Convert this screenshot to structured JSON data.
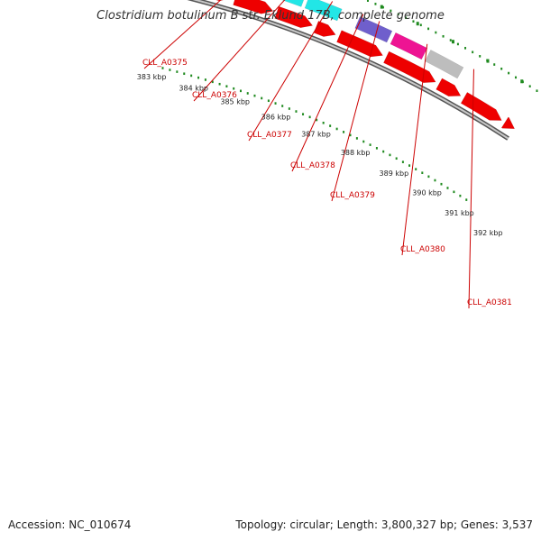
{
  "header": {
    "title": "Clostridium botulinum B str. Eklund 17B, complete genome"
  },
  "footer": {
    "accession": "Accession: NC_010674",
    "summary": "Topology: circular; Length: 3,800,327 bp; Genes: 3,537"
  },
  "colors": {
    "cds": "#ee0000",
    "backbone": "#9a9a9a",
    "gc_dots": "#1f8a1f",
    "label": "#cc0000",
    "purple": "#6f5fcc",
    "cyan": "#22e6e6",
    "magenta": "#ee1493",
    "gray": "#bdbdbd"
  },
  "scale": {
    "unit": "kbp",
    "ticks": [
      "383 kbp",
      "384 kbp",
      "385 kbp",
      "386 kbp",
      "387 kbp",
      "388 kbp",
      "389 kbp",
      "390 kbp",
      "391 kbp",
      "392 kbp"
    ]
  },
  "genes": [
    {
      "label": "CLL_A0375",
      "feature_color": "purple"
    },
    {
      "label": "CLL_A0376",
      "feature_color": "cyan"
    },
    {
      "label": "CLL_A0377",
      "feature_color": "purple"
    },
    {
      "label": "CLL_A0378",
      "feature_color": ""
    },
    {
      "label": "CLL_A0379",
      "feature_color": "magenta"
    },
    {
      "label": "CLL_A0380",
      "feature_color": "gray"
    },
    {
      "label": "CLL_A0381",
      "feature_color": ""
    }
  ]
}
